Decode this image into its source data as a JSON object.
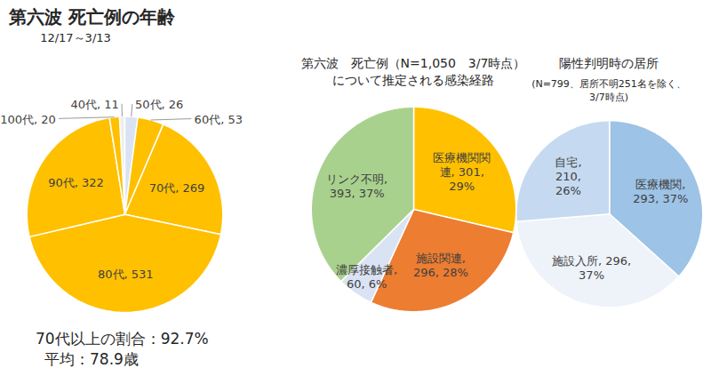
{
  "chart_data": [
    {
      "type": "pie",
      "title": "第六波  死亡例の年齢",
      "subtitle": "12/17～3/13",
      "categories": [
        "40代",
        "50代",
        "60代",
        "70代",
        "80代",
        "90代",
        "100代"
      ],
      "values": [
        11,
        26,
        53,
        269,
        531,
        322,
        20
      ],
      "value_labels": [
        "40代, 11",
        "50代, 26",
        "60代, 53",
        "70代, 269",
        "80代, 531",
        "90代, 322",
        "100代, 20"
      ],
      "colors": [
        "#eeeeee",
        "#dae3f3",
        "#ffc000",
        "#ffc000",
        "#ffc000",
        "#ffc000",
        "#ffc000"
      ],
      "data_labels": true,
      "annotations": [
        "70代以上の割合：92.7%",
        "平均：78.9歳"
      ]
    },
    {
      "type": "pie",
      "title": "第六波　死亡例（N=1,050　3/7時点）\nについて推定される感染経路",
      "categories": [
        "医療機関関連",
        "施設関連",
        "濃厚接触者",
        "リンク不明"
      ],
      "values": [
        301,
        296,
        60,
        393
      ],
      "value_labels": [
        "医療機関関\n連, 301,\n29%",
        "施設関連,\n296, 28%",
        "濃厚接触者,\n60, 6%",
        "リンク不明,\n393, 37%"
      ],
      "colors": [
        "#ffc000",
        "#ed7d31",
        "#dae3f3",
        "#a9d18e"
      ],
      "data_labels": true
    },
    {
      "type": "pie",
      "title": "陽性判明時の居所",
      "subtitle": "(N=799、居所不明251名を除く、\n3/7時点)",
      "categories": [
        "医療機関",
        "施設入所",
        "自宅"
      ],
      "values": [
        293,
        296,
        210
      ],
      "value_labels": [
        "医療機関,\n293, 37%",
        "施設入所, 296,\n37%",
        "自宅,\n210,\n26%"
      ],
      "colors": [
        "#9dc3e6",
        "#eef3fa",
        "#c5daf0"
      ],
      "data_labels": true
    }
  ]
}
